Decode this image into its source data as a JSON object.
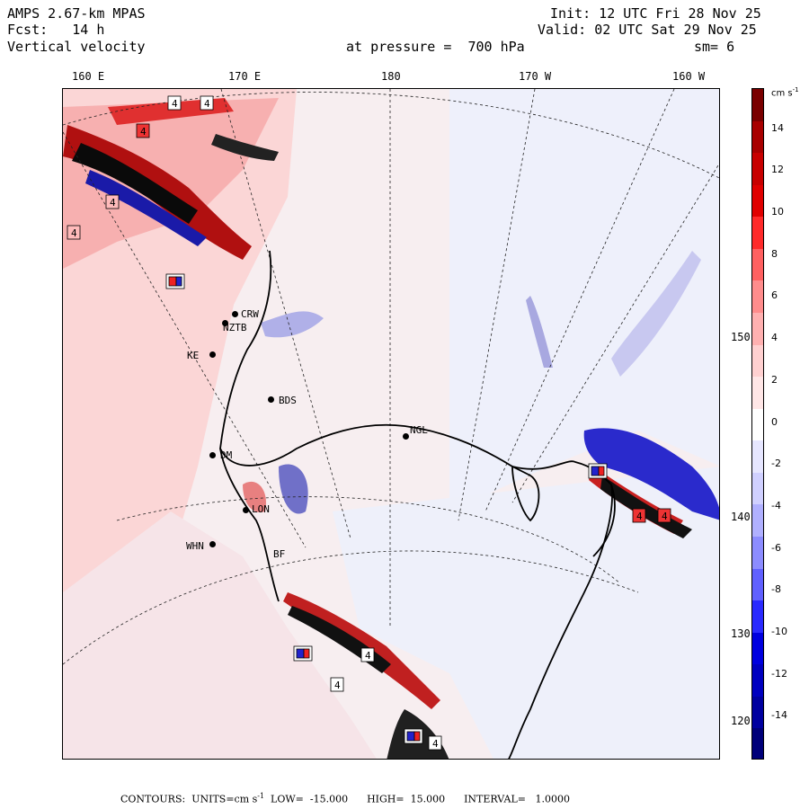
{
  "header": {
    "model": "AMPS 2.67-km MPAS",
    "fcst": "Fcst:   14 h",
    "field": "Vertical velocity",
    "pressure": "at pressure =  700 hPa",
    "init": "Init: 12 UTC Fri 28 Nov 25",
    "valid": "Valid: 02 UTC Sat 29 Nov 25",
    "smoothing": "sm= 6"
  },
  "longitude_ticks_top": [
    "160 E",
    "170 E",
    "180",
    "170 W",
    "160 W"
  ],
  "longitude_ticks_right": [
    "150 W",
    "140 W",
    "130 W",
    "120 W"
  ],
  "stations": [
    "CRW",
    "NZTB",
    "KE",
    "BDS",
    "NGL",
    "DM",
    "LON",
    "WHN",
    "BF"
  ],
  "colorbar": {
    "units": "cm s",
    "units_superscript": "-1",
    "labels": [
      "14",
      "12",
      "10",
      "8",
      "6",
      "4",
      "2",
      "0",
      "-2",
      "-4",
      "-6",
      "-8",
      "-10",
      "-12",
      "-14"
    ],
    "colors": [
      "#7a0000",
      "#a80000",
      "#c80000",
      "#e00000",
      "#ff2a2a",
      "#ff6060",
      "#ff8c8c",
      "#ffb0b0",
      "#ffd0d0",
      "#ffe6e6",
      "#ffffff",
      "#e6e6ff",
      "#d0d0ff",
      "#b0b0ff",
      "#8c8cff",
      "#6060ff",
      "#2a2aff",
      "#0000e0",
      "#0000c0",
      "#0000a0",
      "#00007a"
    ]
  },
  "contour_labels": [
    "4",
    "4",
    "4",
    "4",
    "4",
    "4",
    "4",
    "4",
    "4",
    "4"
  ],
  "footer": {
    "contours": "CONTOURS:  UNITS=cm s",
    "units_superscript": "-1",
    "rest": "  LOW=  -15.000      HIGH=  15.000      INTERVAL=   1.0000"
  }
}
